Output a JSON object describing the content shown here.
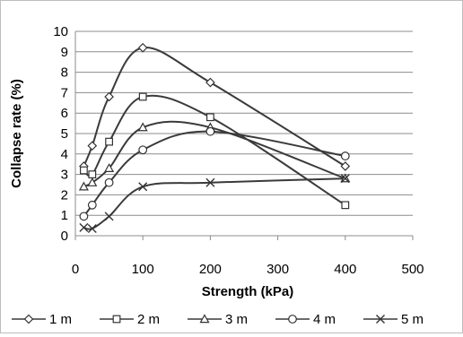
{
  "chart_data": {
    "type": "line",
    "title": "",
    "xlabel": "Strength (kPa)",
    "ylabel": "Collapse rate (%)",
    "xlim": [
      0,
      500
    ],
    "ylim": [
      0,
      10
    ],
    "xticks": [
      0,
      100,
      200,
      300,
      400,
      500
    ],
    "yticks": [
      0,
      1,
      2,
      3,
      4,
      5,
      6,
      7,
      8,
      9,
      10
    ],
    "grid": "horizontal",
    "legend_position": "bottom",
    "smooth": true,
    "series": [
      {
        "name": "1 m",
        "marker": "diamond",
        "x": [
          12.5,
          25,
          50,
          100,
          200,
          400
        ],
        "y": [
          3.4,
          4.4,
          6.8,
          9.2,
          7.5,
          3.4
        ]
      },
      {
        "name": "2 m",
        "marker": "square",
        "x": [
          12.5,
          25,
          50,
          100,
          200,
          400
        ],
        "y": [
          3.2,
          3.0,
          4.6,
          6.8,
          5.8,
          1.5
        ]
      },
      {
        "name": "3 m",
        "marker": "triangle",
        "x": [
          12.5,
          25,
          50,
          100,
          200,
          400
        ],
        "y": [
          2.4,
          2.6,
          3.3,
          5.3,
          5.3,
          2.8
        ]
      },
      {
        "name": "4 m",
        "marker": "circle",
        "x": [
          12.5,
          25,
          50,
          100,
          200,
          400
        ],
        "y": [
          0.95,
          1.5,
          2.6,
          4.2,
          5.1,
          3.9
        ]
      },
      {
        "name": "5 m",
        "marker": "x",
        "x": [
          12.5,
          25,
          50,
          100,
          200,
          400
        ],
        "y": [
          0.4,
          0.35,
          0.95,
          2.4,
          2.6,
          2.8
        ]
      }
    ]
  }
}
